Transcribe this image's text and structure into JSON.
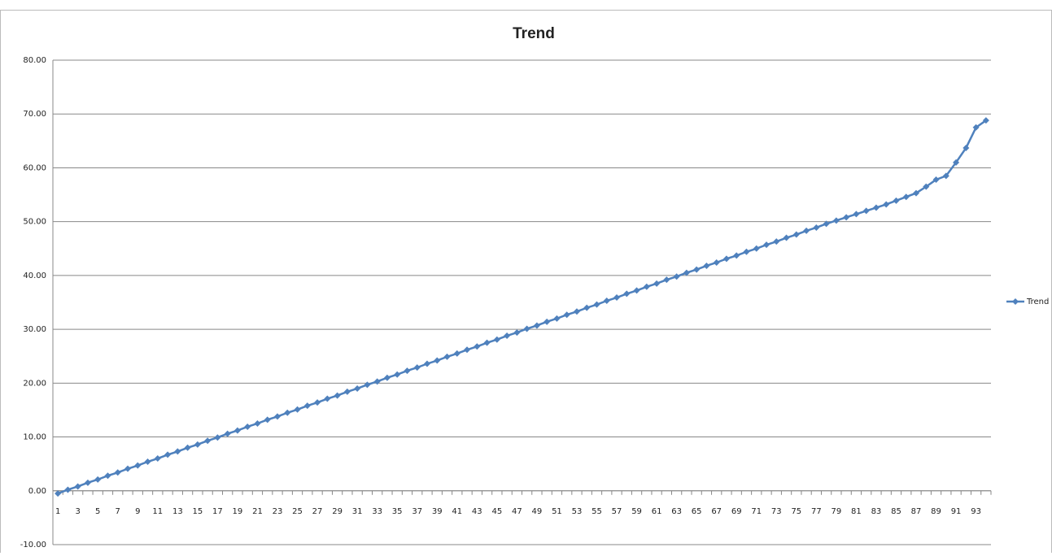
{
  "chart_data": {
    "type": "line",
    "title": "Trend",
    "categories": [
      "1",
      null,
      "3",
      null,
      "5",
      null,
      "7",
      null,
      "9",
      null,
      "11",
      null,
      "13",
      null,
      "15",
      null,
      "17",
      null,
      "19",
      null,
      "21",
      null,
      "23",
      null,
      "25",
      null,
      "27",
      null,
      "29",
      null,
      "31",
      null,
      "33",
      null,
      "35",
      null,
      "37",
      null,
      "39",
      null,
      "41",
      null,
      "43",
      null,
      "45",
      null,
      "47",
      null,
      "49",
      null,
      "51",
      null,
      "53",
      null,
      "55",
      null,
      "57",
      null,
      "59",
      null,
      "61",
      null,
      "63",
      null,
      "65",
      null,
      "67",
      null,
      "69",
      null,
      "71",
      null,
      "73",
      null,
      "75",
      null,
      "77",
      null,
      "79",
      null,
      "81",
      null,
      "83",
      null,
      "85",
      null,
      "87",
      null,
      "89",
      null,
      "91",
      null,
      "93",
      null
    ],
    "series": [
      {
        "name": "Trend",
        "color": "#4f81bd",
        "values": [
          -0.5,
          0.2,
          0.8,
          1.5,
          2.1,
          2.8,
          3.4,
          4.1,
          4.7,
          5.4,
          6.0,
          6.7,
          7.3,
          8.0,
          8.6,
          9.3,
          9.9,
          10.6,
          11.2,
          11.9,
          12.5,
          13.2,
          13.8,
          14.5,
          15.1,
          15.8,
          16.4,
          17.1,
          17.7,
          18.4,
          19.0,
          19.7,
          20.3,
          21.0,
          21.6,
          22.3,
          22.9,
          23.6,
          24.2,
          24.9,
          25.5,
          26.2,
          26.8,
          27.5,
          28.1,
          28.8,
          29.4,
          30.1,
          30.7,
          31.4,
          32.0,
          32.7,
          33.3,
          34.0,
          34.6,
          35.3,
          35.9,
          36.6,
          37.2,
          37.9,
          38.5,
          39.2,
          39.8,
          40.5,
          41.1,
          41.8,
          42.4,
          43.1,
          43.7,
          44.4,
          45.0,
          45.7,
          46.3,
          47.0,
          47.6,
          48.3,
          48.9,
          49.6,
          50.2,
          50.8,
          51.4,
          52.0,
          52.6,
          53.2,
          53.9,
          54.6,
          55.3,
          56.5,
          57.8,
          58.5,
          61.0,
          63.7,
          67.5,
          68.8
        ]
      }
    ],
    "ylim": [
      -10,
      80
    ],
    "yticks": [
      {
        "value": -10,
        "label": "-10.00"
      },
      {
        "value": 0,
        "label": "0.00"
      },
      {
        "value": 10,
        "label": "10.00"
      },
      {
        "value": 20,
        "label": "20.00"
      },
      {
        "value": 30,
        "label": "30.00"
      },
      {
        "value": 40,
        "label": "40.00"
      },
      {
        "value": 50,
        "label": "50.00"
      },
      {
        "value": 60,
        "label": "60.00"
      },
      {
        "value": 70,
        "label": "70.00"
      },
      {
        "value": 80,
        "label": "80.00"
      }
    ],
    "grid": true,
    "legend": "right"
  }
}
